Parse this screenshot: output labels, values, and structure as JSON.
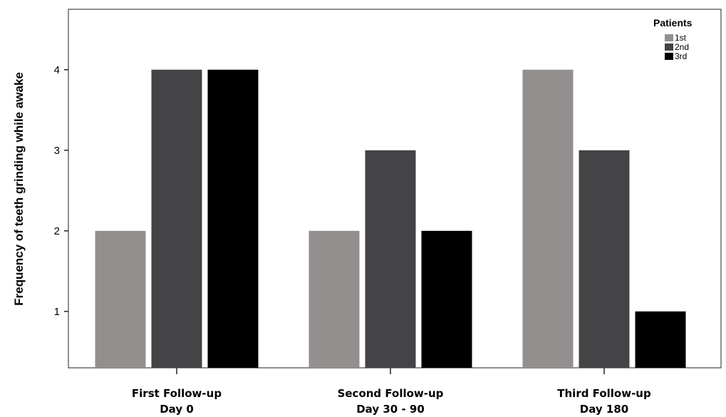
{
  "chart_data": {
    "type": "bar",
    "ylabel": "Frequency of teeth grinding while awake",
    "xlabel": "",
    "categories": [
      [
        "First Follow-up",
        "Day 0"
      ],
      [
        "Second  Follow-up",
        "Day 30 - 90"
      ],
      [
        "Third  Follow-up",
        "Day 180"
      ]
    ],
    "series": [
      {
        "name": "1st",
        "color": "#948f8f",
        "values": [
          2,
          2,
          4
        ]
      },
      {
        "name": "2nd",
        "color": "#444446",
        "values": [
          4,
          3,
          3
        ]
      },
      {
        "name": "3rd",
        "color": "#000000",
        "values": [
          4,
          2,
          1
        ]
      }
    ],
    "yticks": [
      1,
      2,
      3,
      4
    ],
    "ylim": [
      0.3,
      4.75
    ],
    "grid": false,
    "legend": {
      "title": "Patients",
      "placement": "top-right"
    }
  }
}
